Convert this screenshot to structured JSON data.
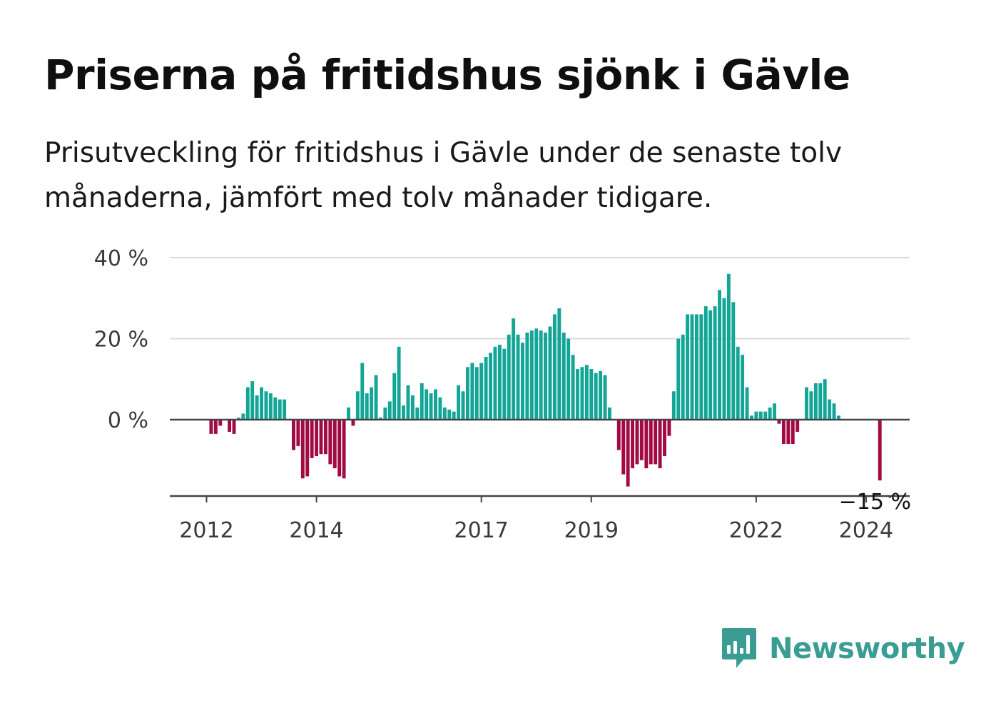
{
  "title": "Priserna på fritidshus sjönk i Gävle",
  "subtitle": "Prisutveckling för fritidshus i Gävle under de senaste tolv månaderna, jämfört med tolv månader tidigare.",
  "brand": {
    "name": "Newsworthy",
    "color": "#3a9d94",
    "icon": "newsworthy-logo-icon"
  },
  "colors": {
    "positive": "#13a596",
    "negative": "#a10a43",
    "grid": "#dcdcdc",
    "axis": "#444444"
  },
  "chart_data": {
    "type": "bar",
    "ylim": [
      -18,
      40
    ],
    "y_ticks": [
      {
        "value": 40,
        "label": "40 %"
      },
      {
        "value": 20,
        "label": "20 %"
      },
      {
        "value": 0,
        "label": "0 %"
      }
    ],
    "x_ticks": [
      {
        "index": 0,
        "label": "2012"
      },
      {
        "index": 24,
        "label": "2014"
      },
      {
        "index": 60,
        "label": "2017"
      },
      {
        "index": 84,
        "label": "2019"
      },
      {
        "index": 120,
        "label": "2022"
      },
      {
        "index": 144,
        "label": "2024"
      }
    ],
    "grid": true,
    "annotation": {
      "index": 147,
      "label": "−15 %"
    },
    "values": [
      0,
      -3.5,
      -3.5,
      -1.5,
      0,
      -3,
      -3.5,
      0.5,
      1.5,
      8,
      9.5,
      6,
      8,
      7,
      6.5,
      5.5,
      5,
      5,
      0,
      -7.5,
      -6.5,
      -14.5,
      -14,
      -9.5,
      -9,
      -8.5,
      -8.5,
      -11,
      -12,
      -14,
      -14.5,
      3,
      -1.5,
      7,
      14,
      6.5,
      8,
      11,
      0.5,
      3,
      4.5,
      11.5,
      18,
      3.5,
      8.5,
      6,
      3,
      9,
      7.5,
      6.5,
      7.5,
      5.5,
      3,
      2.5,
      2,
      8.5,
      7,
      13,
      14,
      13,
      14,
      15.5,
      16.5,
      18,
      18.5,
      17.5,
      21,
      25,
      21,
      19,
      21.5,
      22,
      22.5,
      22,
      21.5,
      23,
      26,
      27.5,
      21.5,
      20,
      16,
      12.5,
      13,
      13.5,
      12.5,
      11.5,
      12,
      11,
      3,
      0,
      -7.5,
      -13.5,
      -16.5,
      -12,
      -11,
      -10,
      -12,
      -11,
      -11,
      -12,
      -9,
      -4,
      7,
      20,
      21,
      26,
      26,
      26,
      26,
      28,
      27,
      28,
      32,
      30,
      36,
      29,
      18,
      16,
      8,
      1,
      2,
      2,
      2,
      3,
      4,
      -1,
      -6,
      -6,
      -6,
      -3,
      0,
      8,
      7,
      9,
      9,
      10,
      5,
      4,
      1,
      0,
      0,
      0,
      0,
      0,
      0,
      0,
      0,
      -15
    ]
  }
}
